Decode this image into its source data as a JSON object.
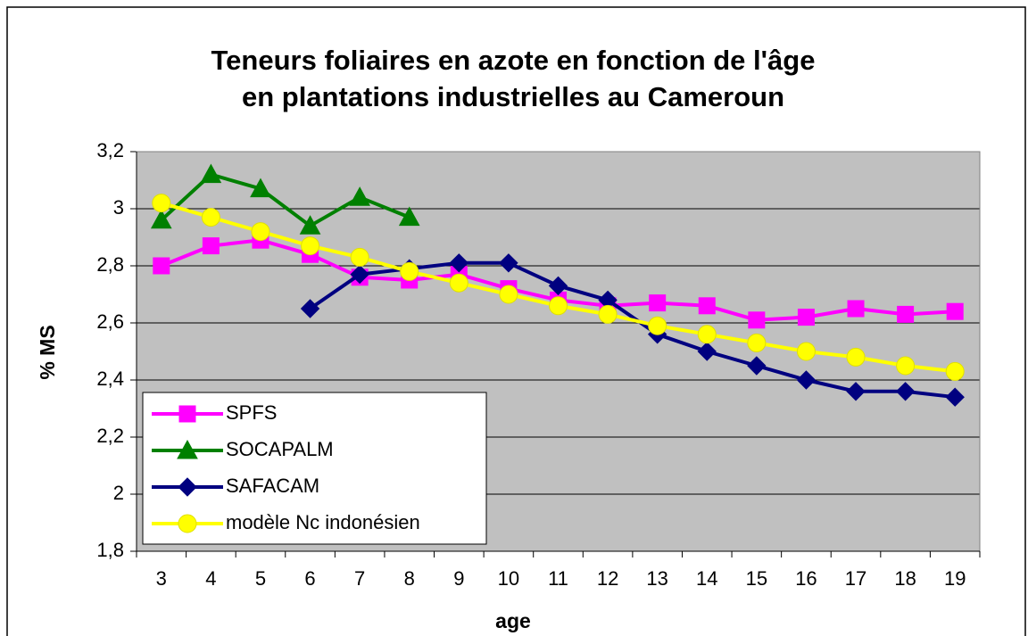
{
  "chart_data": {
    "type": "line",
    "title": "Teneurs foliaires en azote en fonction de l'âge",
    "subtitle": "en plantations industrielles au Cameroun",
    "x_label": "age",
    "y_label": "% MS",
    "categories": [
      3,
      4,
      5,
      6,
      7,
      8,
      9,
      10,
      11,
      12,
      13,
      14,
      15,
      16,
      17,
      18,
      19
    ],
    "series": [
      {
        "name": "SPFS",
        "color": "#ff00ff",
        "marker": "square",
        "values": [
          2.8,
          2.87,
          2.89,
          2.84,
          2.76,
          2.75,
          2.77,
          2.72,
          2.68,
          2.66,
          2.67,
          2.66,
          2.61,
          2.62,
          2.65,
          2.63,
          2.64
        ]
      },
      {
        "name": "SOCAPALM",
        "color": "#008000",
        "marker": "triangle",
        "values": [
          2.96,
          3.12,
          3.07,
          2.94,
          3.04,
          2.97,
          null,
          null,
          null,
          null,
          null,
          null,
          null,
          null,
          null,
          null,
          null
        ]
      },
      {
        "name": "SAFACAM",
        "color": "#000080",
        "marker": "diamond",
        "values": [
          null,
          null,
          null,
          2.65,
          2.77,
          2.79,
          2.81,
          2.81,
          2.73,
          2.68,
          2.56,
          2.5,
          2.45,
          2.4,
          2.36,
          2.36,
          2.34
        ]
      },
      {
        "name": "modèle Nc indonésien",
        "color": "#ffff00",
        "marker": "circle",
        "values": [
          3.02,
          2.97,
          2.92,
          2.87,
          2.83,
          2.78,
          2.74,
          2.7,
          2.66,
          2.63,
          2.59,
          2.56,
          2.53,
          2.5,
          2.48,
          2.45,
          2.43
        ]
      }
    ],
    "ylim": [
      1.8,
      3.2
    ],
    "yticks": [
      {
        "value": 1.8,
        "label": "1,8"
      },
      2,
      {
        "value": 2.2,
        "label": "2,2"
      },
      {
        "value": 2.4,
        "label": "2,4"
      },
      {
        "value": 2.6,
        "label": "2,6"
      },
      {
        "value": 2.8,
        "label": "2,8"
      },
      3,
      {
        "value": 3.2,
        "label": "3,2"
      }
    ],
    "grid": true,
    "plot_background": "#c0c0c0",
    "legend": "lower left"
  }
}
